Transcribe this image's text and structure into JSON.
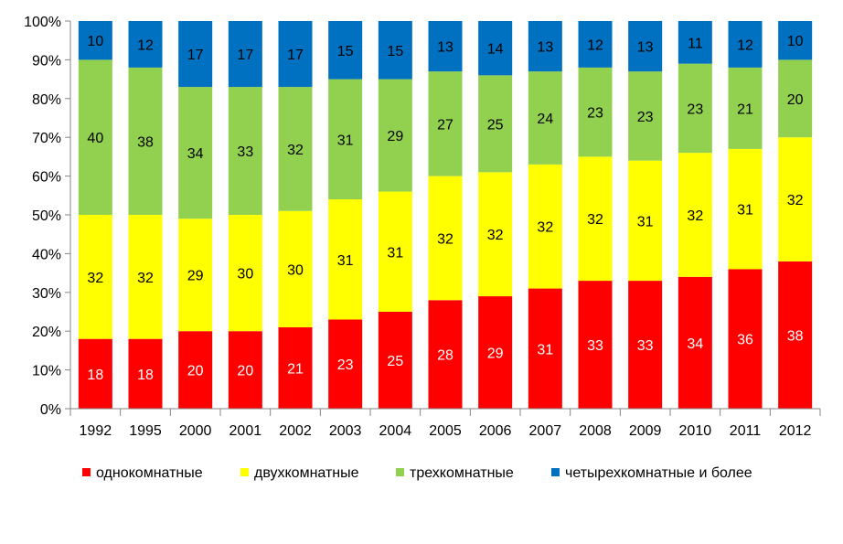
{
  "chart_data": {
    "type": "bar",
    "stacked": true,
    "title": "",
    "xlabel": "",
    "ylabel": "",
    "ylim": [
      0,
      100
    ],
    "y_ticks": [
      "0%",
      "10%",
      "20%",
      "30%",
      "40%",
      "50%",
      "60%",
      "70%",
      "80%",
      "90%",
      "100%"
    ],
    "categories": [
      "1992",
      "1995",
      "2000",
      "2001",
      "2002",
      "2003",
      "2004",
      "2005",
      "2006",
      "2007",
      "2008",
      "2009",
      "2010",
      "2011",
      "2012"
    ],
    "series": [
      {
        "name": "однокомнатные",
        "color": "#ff0000",
        "label_color": "#ffffff",
        "values": [
          18,
          18,
          20,
          20,
          21,
          23,
          25,
          28,
          29,
          31,
          33,
          33,
          34,
          36,
          38
        ]
      },
      {
        "name": "двухкомнатные",
        "color": "#ffff00",
        "label_color": "#000000",
        "values": [
          32,
          32,
          29,
          30,
          30,
          31,
          31,
          32,
          32,
          32,
          32,
          31,
          32,
          31,
          32
        ]
      },
      {
        "name": "трехкомнатные",
        "color": "#92d050",
        "label_color": "#000000",
        "values": [
          40,
          38,
          34,
          33,
          32,
          31,
          29,
          27,
          25,
          24,
          23,
          23,
          23,
          21,
          20
        ]
      },
      {
        "name": "четырехкомнатные и более",
        "color": "#0070c0",
        "label_color": "#000000",
        "values": [
          10,
          12,
          17,
          17,
          17,
          15,
          15,
          13,
          14,
          13,
          12,
          13,
          11,
          12,
          10
        ]
      }
    ],
    "grid": false,
    "legend_position": "bottom"
  }
}
